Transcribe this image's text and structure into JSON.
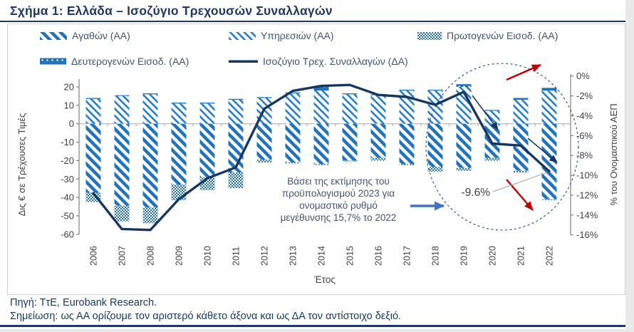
{
  "page": {
    "title": "Σχήμα 1: Ελλάδα – Ισοζύγιο Τρεχουσών Συναλλαγών",
    "footer_source": "Πηγή: ΤτΕ, Eurobank Research.",
    "footer_note": "Σημείωση: ως ΑΑ ορίζουμε τον αριστερό κάθετο άξονα και ως ΔΑ τον αντίστοιχο δεξιό."
  },
  "colors": {
    "navy": "#17375E",
    "title_navy": "#1F3864",
    "bar_blue": "#2373B9",
    "services_blue": "#2E7FC2",
    "red": "#C00000",
    "annotation_arrow_blue": "#4472C4",
    "axis_gray": "#808080",
    "grid_gray": "#A6A6A6",
    "text_gray": "#404040",
    "legend_text": "#44546A",
    "connector_gray": "#ADADAD"
  },
  "legend": [
    {
      "key": "goods",
      "label": "Αγαθών (ΑΑ)"
    },
    {
      "key": "services",
      "label": "Υπηρεσιών (ΑΑ)"
    },
    {
      "key": "primary",
      "label": "Πρωτογενών Εισοδ. (ΑΑ)"
    },
    {
      "key": "secondary",
      "label": "Δευτερογενών Εισοδ. (ΑΑ)"
    },
    {
      "key": "balance_line",
      "label": "Ισοζύγιο Τρεχ. Συναλλαγών (ΔΑ)"
    }
  ],
  "annotation": {
    "lines": [
      "Βάσει της εκτίμησης του",
      "προϋπολογισμού 2023 για",
      "ονομαστικό ρυθμό",
      "μεγέθυνσης 15,7% το 2022"
    ]
  },
  "chart_data": {
    "type": "bar+line",
    "title": "Ελλάδα – Ισοζύγιο Τρεχουσών Συναλλαγών",
    "categories": [
      "2006",
      "2007",
      "2008",
      "2009",
      "2010",
      "2011",
      "2012",
      "2013",
      "2014",
      "2015",
      "2016",
      "2017",
      "2018",
      "2019",
      "2020",
      "2021",
      "2022"
    ],
    "series": [
      {
        "key": "services",
        "name": "Υπηρεσιών (ΑΑ)",
        "type": "bar",
        "axis": "left",
        "unit": "Δις €",
        "values": [
          13.5,
          15,
          16,
          11,
          11,
          13,
          14,
          16.5,
          18,
          16,
          15.5,
          18,
          18,
          20,
          7,
          13,
          18
        ]
      },
      {
        "key": "secondary",
        "name": "Δευτερογενών Εισοδ. (ΑΑ)",
        "type": "bar",
        "axis": "left",
        "unit": "Δις €",
        "values": [
          0.5,
          0.5,
          0.5,
          0.5,
          0.5,
          0.5,
          0.5,
          0.5,
          2,
          0.5,
          0.5,
          0.5,
          0.5,
          1.5,
          0.5,
          1,
          1.5
        ]
      },
      {
        "key": "goods",
        "name": "Αγαθών (ΑΑ)",
        "type": "bar",
        "axis": "left",
        "unit": "Δις €",
        "values": [
          -37.5,
          -44.5,
          -45.5,
          -33,
          -29,
          -26.5,
          -19.5,
          -21,
          -22,
          -20,
          -18.5,
          -22,
          -23.5,
          -24,
          -18.5,
          -25.5,
          -41
        ]
      },
      {
        "key": "primary",
        "name": "Πρωτογενών Εισοδ. (ΑΑ)",
        "type": "bar",
        "axis": "left",
        "unit": "Δις €",
        "values": [
          -5,
          -8.5,
          -8.5,
          -8.5,
          -7,
          -8.5,
          -1.5,
          -0.5,
          -0.5,
          -0.5,
          -1.5,
          -0.5,
          -2.5,
          -1.5,
          -1.5,
          -1,
          -0.5
        ]
      },
      {
        "key": "balance_line",
        "name": "Ισοζύγιο Τρεχ. Συναλλαγών (ΔΑ)",
        "type": "line",
        "axis": "right",
        "unit": "% του ΑΕΠ",
        "values": [
          -11.8,
          -15.4,
          -15.5,
          -12.4,
          -10.3,
          -9.2,
          -3.3,
          -1.5,
          -1.0,
          -0.9,
          -1.9,
          -2.1,
          -2.9,
          -1.6,
          -6.8,
          -7.0,
          -9.6
        ]
      }
    ],
    "left_axis": {
      "label": "Δις € σε Τρέχουσες Τιμές",
      "ticks": [
        20,
        10,
        0,
        -10,
        -20,
        -30,
        -40,
        -50,
        -60
      ],
      "range": [
        20,
        -60
      ]
    },
    "right_axis": {
      "label": "% του Ονομαστικού ΑΕΠ",
      "ticks": [
        "0%",
        "-2%",
        "-4%",
        "-6%",
        "-8%",
        "-10%",
        "-12%",
        "-14%",
        "-16%"
      ],
      "tick_values": [
        0,
        -2,
        -4,
        -6,
        -8,
        -10,
        -12,
        -14,
        -16
      ],
      "range": [
        0,
        -16
      ]
    },
    "xlabel": "Έτος",
    "grid": "zero-line-only",
    "legend_position": "top",
    "callout_label": "-9.6%"
  }
}
